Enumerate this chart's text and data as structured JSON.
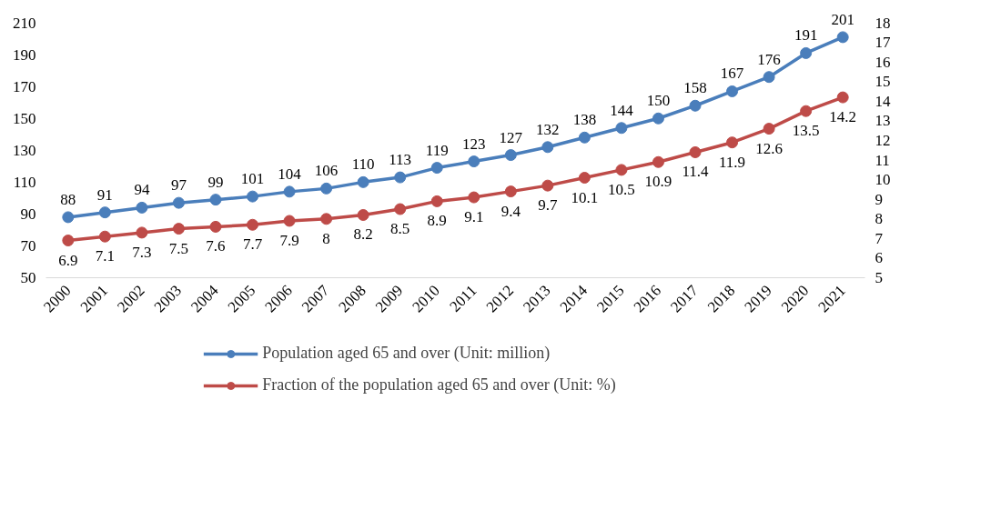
{
  "chart_data": {
    "type": "line",
    "categories": [
      "2000",
      "2001",
      "2002",
      "2003",
      "2004",
      "2005",
      "2006",
      "2007",
      "2008",
      "2009",
      "2010",
      "2011",
      "2012",
      "2013",
      "2014",
      "2015",
      "2016",
      "2017",
      "2018",
      "2019",
      "2020",
      "2021"
    ],
    "series": [
      {
        "name": "Population aged 65 and over (Unit: million)",
        "color": "#4a7ebb",
        "values": [
          88,
          91,
          94,
          97,
          99,
          101,
          104,
          106,
          110,
          113,
          119,
          123,
          127,
          132,
          138,
          144,
          150,
          158,
          167,
          176,
          191,
          201
        ]
      },
      {
        "name": "Fraction of the population aged 65 and over (Unit: %)",
        "color": "#be4b48",
        "axis": "y2",
        "values": [
          6.9,
          7.1,
          7.3,
          7.5,
          7.6,
          7.7,
          7.9,
          8,
          8.2,
          8.5,
          8.9,
          9.1,
          9.4,
          9.7,
          10.1,
          10.5,
          10.9,
          11.4,
          11.9,
          12.6,
          13.5,
          14.2
        ]
      }
    ],
    "ylim": [
      50,
      210
    ],
    "yticks": [
      50,
      70,
      90,
      110,
      130,
      150,
      170,
      190,
      210
    ],
    "y2lim": [
      5,
      18
    ],
    "y2ticks": [
      5,
      6,
      7,
      8,
      9,
      10,
      11,
      12,
      13,
      14,
      15,
      16,
      17,
      18
    ],
    "data_labels": true,
    "grid": false,
    "legend": "bottom",
    "marker": "circle",
    "line_style": "solid"
  }
}
